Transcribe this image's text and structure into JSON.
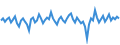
{
  "chart_data": {
    "type": "line",
    "color": "#3d8fd8",
    "tick_labels": false,
    "grid": false,
    "categories": [
      null,
      null,
      null,
      null,
      null,
      null,
      null,
      null,
      null,
      null,
      null,
      null,
      null,
      null,
      null,
      null,
      null,
      null,
      null,
      null,
      null,
      null,
      null,
      null,
      null,
      null,
      null,
      null,
      null,
      null,
      null,
      null,
      null,
      null,
      null,
      null,
      null,
      null,
      null,
      null,
      null,
      null,
      null,
      null,
      null,
      null,
      null,
      null,
      null,
      null,
      null,
      null,
      null,
      null,
      null,
      null,
      null,
      null,
      null,
      null
    ],
    "values": [
      55,
      60,
      52,
      58,
      62,
      50,
      57,
      65,
      48,
      40,
      55,
      60,
      52,
      45,
      30,
      58,
      62,
      50,
      55,
      70,
      60,
      48,
      56,
      62,
      58,
      75,
      60,
      52,
      45,
      58,
      64,
      55,
      50,
      60,
      68,
      72,
      58,
      50,
      62,
      55,
      48,
      52,
      40,
      10,
      45,
      60,
      55,
      80,
      62,
      50,
      58,
      66,
      52,
      60,
      70,
      55,
      62,
      58,
      64,
      60
    ]
  }
}
